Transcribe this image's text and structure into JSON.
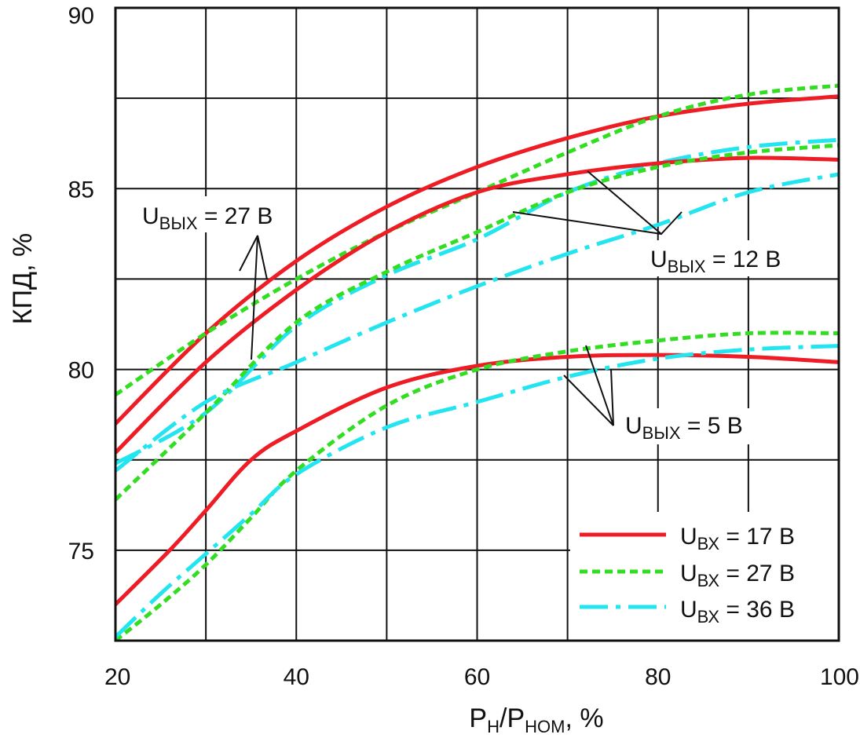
{
  "chart_data": {
    "type": "line",
    "title": "",
    "xlabel": {
      "main": "P",
      "sub1": "Н",
      "sep": "/P",
      "sub2": "НОМ",
      "tail": ", %"
    },
    "ylabel": "КПД, %",
    "xlim": [
      20,
      100
    ],
    "ylim": [
      72.5,
      90
    ],
    "x_ticks": [
      20,
      40,
      60,
      80,
      100
    ],
    "x_tick_labels": [
      "20",
      "40",
      "60",
      "80",
      "100"
    ],
    "y_ticks": [
      75,
      80,
      85,
      90
    ],
    "y_tick_labels": [
      "75",
      "80",
      "85",
      "90"
    ],
    "x_grid": [
      30,
      40,
      50,
      60,
      70,
      80,
      90
    ],
    "y_grid": [
      75,
      77.5,
      80,
      82.5,
      85,
      87.5
    ],
    "series_styles": {
      "uin17": {
        "color": "#ee1c25",
        "dash": "none"
      },
      "uin27": {
        "color": "#33dd22",
        "dash": "10,6"
      },
      "uin36": {
        "color": "#22e5f0",
        "dash": "36,10,6,10"
      }
    },
    "legend": [
      {
        "key": "uin17",
        "main": "U",
        "sub": "ВХ",
        "text": " = 17 В"
      },
      {
        "key": "uin27",
        "main": "U",
        "sub": "ВХ",
        "text": " = 27 В"
      },
      {
        "key": "uin36",
        "main": "U",
        "sub": "ВХ",
        "text": " = 36 В"
      }
    ],
    "annotations": [
      {
        "id": "ann-27",
        "main": "U",
        "sub": "ВЫХ",
        "text": " = 27 В"
      },
      {
        "id": "ann-12",
        "main": "U",
        "sub": "ВЫХ",
        "text": " = 12 В"
      },
      {
        "id": "ann-5",
        "main": "U",
        "sub": "ВЫХ",
        "text": " = 5 В"
      }
    ],
    "series": [
      {
        "name": "Uвых=27 В, Uвх=17 В",
        "style": "uin17",
        "x": [
          20,
          30,
          40,
          50,
          60,
          70,
          80,
          90,
          100
        ],
        "values": [
          78.5,
          81.0,
          83.0,
          84.5,
          85.6,
          86.4,
          87.0,
          87.35,
          87.55
        ]
      },
      {
        "name": "Uвых=27 В, Uвх=27 В",
        "style": "uin27",
        "x": [
          20,
          30,
          40,
          50,
          60,
          70,
          80,
          90,
          100
        ],
        "values": [
          79.3,
          81.0,
          82.5,
          83.8,
          84.9,
          86.0,
          87.0,
          87.6,
          87.85
        ]
      },
      {
        "name": "Uвых=27 В, Uвх=36 В",
        "style": "uin36",
        "x": [
          20,
          30,
          40,
          50,
          60,
          70,
          80,
          90,
          100
        ],
        "values": [
          77.4,
          78.8,
          81.2,
          82.6,
          83.6,
          84.9,
          85.7,
          86.15,
          86.35
        ]
      },
      {
        "name": "Uвых=12 В, Uвх=17 В",
        "style": "uin17",
        "x": [
          20,
          30,
          40,
          50,
          60,
          70,
          80,
          90,
          100
        ],
        "values": [
          77.7,
          80.2,
          82.2,
          83.8,
          84.9,
          85.4,
          85.7,
          85.85,
          85.8
        ]
      },
      {
        "name": "Uвых=12 В, Uвх=27 В",
        "style": "uin27",
        "x": [
          20,
          30,
          40,
          50,
          60,
          70,
          80,
          90,
          100
        ],
        "values": [
          76.4,
          78.8,
          81.3,
          82.7,
          83.8,
          84.9,
          85.6,
          86.0,
          86.2
        ]
      },
      {
        "name": "Uвых=12 В, Uвх=36 В",
        "style": "uin36",
        "x": [
          20,
          30,
          40,
          50,
          60,
          70,
          80,
          90,
          100
        ],
        "values": [
          77.2,
          79.1,
          80.2,
          81.3,
          82.3,
          83.2,
          84.0,
          84.9,
          85.4
        ]
      },
      {
        "name": "Uвых=5 В, Uвх=17 В",
        "style": "uin17",
        "x": [
          20,
          26,
          30,
          35,
          40,
          50,
          60,
          70,
          80,
          90,
          100
        ],
        "values": [
          73.5,
          75.0,
          76.1,
          77.5,
          78.3,
          79.5,
          80.1,
          80.35,
          80.4,
          80.35,
          80.2
        ]
      },
      {
        "name": "Uвых=5 В, Uвх=27 В",
        "style": "uin27",
        "x": [
          20,
          25,
          30,
          35,
          40,
          50,
          60,
          70,
          80,
          90,
          100
        ],
        "values": [
          72.5,
          73.5,
          74.6,
          75.9,
          77.2,
          79.0,
          80.0,
          80.5,
          80.8,
          81.0,
          81.0
        ]
      },
      {
        "name": "Uвых=5 В, Uвх=36 В",
        "style": "uin36",
        "x": [
          20,
          25,
          30,
          35,
          40,
          50,
          60,
          70,
          80,
          90,
          100
        ],
        "values": [
          72.6,
          73.8,
          74.9,
          76.0,
          77.1,
          78.4,
          79.1,
          79.8,
          80.3,
          80.55,
          80.65
        ]
      }
    ]
  }
}
